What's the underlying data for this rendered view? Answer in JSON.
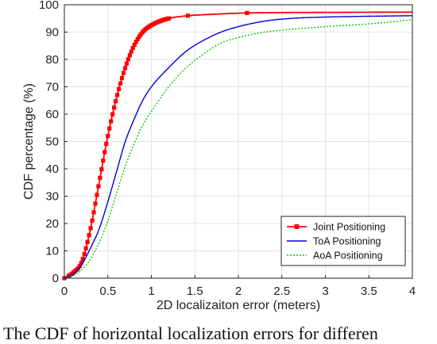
{
  "caption": "The CDF of horizontal localization errors for differen",
  "chart_data": {
    "type": "line",
    "xlabel": "2D localizaiton error (meters)",
    "ylabel": "CDF percentage (%)",
    "xlim": [
      0,
      4
    ],
    "ylim": [
      0,
      100
    ],
    "xticks": [
      "0",
      "0.5",
      "1",
      "1.5",
      "2",
      "2.5",
      "3",
      "3.5",
      "4"
    ],
    "yticks": [
      "0",
      "10",
      "20",
      "30",
      "40",
      "50",
      "60",
      "70",
      "80",
      "90",
      "100"
    ],
    "grid": true,
    "legend": "bottom-right",
    "series": [
      {
        "name": "Joint Positioning",
        "color": "#ff0000",
        "style": "solid-square-markers",
        "points": [
          [
            0,
            0
          ],
          [
            0.1,
            2
          ],
          [
            0.2,
            6
          ],
          [
            0.3,
            18
          ],
          [
            0.4,
            35
          ],
          [
            0.5,
            52
          ],
          [
            0.6,
            66
          ],
          [
            0.7,
            77
          ],
          [
            0.8,
            85
          ],
          [
            0.9,
            90
          ],
          [
            1.0,
            92.5
          ],
          [
            1.1,
            94
          ],
          [
            1.2,
            95
          ],
          [
            1.42,
            96
          ],
          [
            1.7,
            96.5
          ],
          [
            2.1,
            97
          ],
          [
            3.0,
            97.2
          ],
          [
            4.0,
            97.3
          ]
        ]
      },
      {
        "name": "ToA Positioning",
        "color": "#0000dd",
        "style": "solid",
        "points": [
          [
            0,
            0
          ],
          [
            0.1,
            1.5
          ],
          [
            0.2,
            5
          ],
          [
            0.3,
            11
          ],
          [
            0.4,
            18
          ],
          [
            0.5,
            28
          ],
          [
            0.6,
            39
          ],
          [
            0.7,
            50
          ],
          [
            0.8,
            58
          ],
          [
            0.9,
            65
          ],
          [
            1.0,
            70
          ],
          [
            1.2,
            77
          ],
          [
            1.4,
            83
          ],
          [
            1.6,
            87
          ],
          [
            1.8,
            90
          ],
          [
            2.0,
            92
          ],
          [
            2.3,
            94
          ],
          [
            2.6,
            95
          ],
          [
            3.0,
            95.5
          ],
          [
            4.0,
            96
          ]
        ]
      },
      {
        "name": "AoA Positioning",
        "color": "#00cc00",
        "style": "dotted",
        "points": [
          [
            0,
            0
          ],
          [
            0.1,
            1
          ],
          [
            0.2,
            3
          ],
          [
            0.3,
            7
          ],
          [
            0.4,
            13
          ],
          [
            0.5,
            21
          ],
          [
            0.6,
            31
          ],
          [
            0.7,
            41
          ],
          [
            0.8,
            49
          ],
          [
            0.9,
            56
          ],
          [
            1.0,
            61
          ],
          [
            1.2,
            70
          ],
          [
            1.4,
            77
          ],
          [
            1.6,
            82
          ],
          [
            1.8,
            86
          ],
          [
            2.0,
            88
          ],
          [
            2.3,
            90
          ],
          [
            2.6,
            91
          ],
          [
            3.0,
            92
          ],
          [
            3.5,
            93
          ],
          [
            4.0,
            94.5
          ]
        ]
      }
    ]
  }
}
